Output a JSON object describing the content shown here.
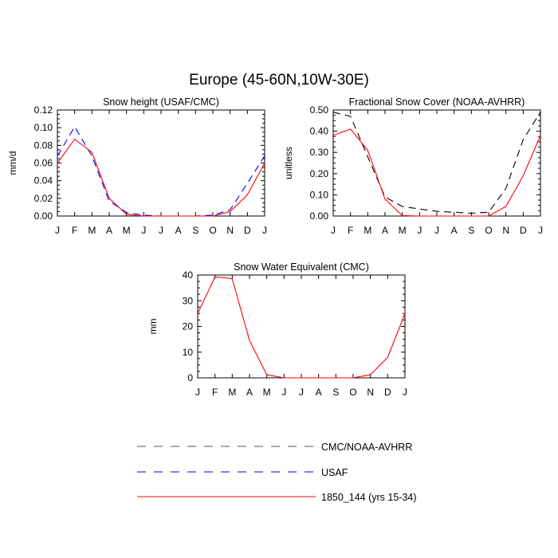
{
  "title": "Europe (45-60N,10W-30E)",
  "legend": [
    {
      "label": "CMC/NOAA-AVHRR",
      "color": "#000000",
      "dash": "dashed"
    },
    {
      "label": "USAF",
      "color": "#0000ff",
      "dash": "dashed"
    },
    {
      "label": "1850_144 (yrs 15-34)",
      "color": "#ff0000",
      "dash": "solid"
    }
  ],
  "chart_data": [
    {
      "type": "line",
      "title": "Snow height (USAF/CMC)",
      "ylabel": "mm/d",
      "xlabel": "",
      "x": [
        "J",
        "F",
        "M",
        "A",
        "M",
        "J",
        "J",
        "A",
        "S",
        "O",
        "N",
        "D",
        "J"
      ],
      "ylim": [
        0,
        0.12
      ],
      "yticks": [
        "0.00",
        "0.02",
        "0.04",
        "0.06",
        "0.08",
        "0.10",
        "0.12"
      ],
      "series": [
        {
          "name": "CMC/NOAA-AVHRR",
          "color": "#000000",
          "dash": "dashed",
          "values": [
            0,
            0,
            0,
            0,
            0,
            0,
            0,
            0,
            0,
            0,
            0,
            0,
            0
          ]
        },
        {
          "name": "USAF",
          "color": "#0000ff",
          "dash": "dashed",
          "values": [
            0.068,
            0.101,
            0.068,
            0.017,
            0.004,
            0.001,
            0.0,
            0.0,
            0.0,
            0.001,
            0.007,
            0.037,
            0.068
          ]
        },
        {
          "name": "1850_144 (yrs 15-34)",
          "color": "#ff0000",
          "dash": "solid",
          "values": [
            0.06,
            0.087,
            0.072,
            0.02,
            0.002,
            0.0,
            0.0,
            0.0,
            0.0,
            0.0,
            0.005,
            0.024,
            0.06
          ]
        }
      ]
    },
    {
      "type": "line",
      "title": "Fractional Snow Cover (NOAA-AVHRR)",
      "ylabel": "unitless",
      "xlabel": "",
      "x": [
        "J",
        "F",
        "M",
        "A",
        "M",
        "J",
        "J",
        "A",
        "S",
        "O",
        "N",
        "D",
        "J"
      ],
      "ylim": [
        0,
        0.5
      ],
      "yticks": [
        "0.00",
        "0.10",
        "0.20",
        "0.30",
        "0.40",
        "0.50"
      ],
      "series": [
        {
          "name": "CMC/NOAA-AVHRR",
          "color": "#000000",
          "dash": "dashed",
          "values": [
            0.49,
            0.47,
            0.28,
            0.09,
            0.045,
            0.033,
            0.022,
            0.018,
            0.013,
            0.018,
            0.13,
            0.36,
            0.49
          ]
        },
        {
          "name": "1850_144 (yrs 15-34)",
          "color": "#ff0000",
          "dash": "solid",
          "values": [
            0.38,
            0.41,
            0.31,
            0.08,
            0.002,
            0.0,
            0.0,
            0.0,
            0.0,
            0.0,
            0.045,
            0.19,
            0.38
          ]
        }
      ]
    },
    {
      "type": "line",
      "title": "Snow Water Equivalent (CMC)",
      "ylabel": "mm",
      "xlabel": "",
      "x": [
        "J",
        "F",
        "M",
        "A",
        "M",
        "J",
        "J",
        "A",
        "S",
        "O",
        "N",
        "D",
        "J"
      ],
      "ylim": [
        0,
        40
      ],
      "yticks": [
        "0",
        "10",
        "20",
        "30",
        "40"
      ],
      "series": [
        {
          "name": "CMC/NOAA-AVHRR",
          "color": "#000000",
          "dash": "dashed",
          "values": [
            0,
            0,
            0,
            0,
            0,
            0,
            0,
            0,
            0,
            0,
            0,
            0,
            0
          ]
        },
        {
          "name": "1850_144 (yrs 15-34)",
          "color": "#ff0000",
          "dash": "solid",
          "values": [
            25,
            39.3,
            38.6,
            14.5,
            1.2,
            0,
            0,
            0,
            0,
            0,
            1.2,
            8,
            25
          ]
        }
      ]
    }
  ]
}
